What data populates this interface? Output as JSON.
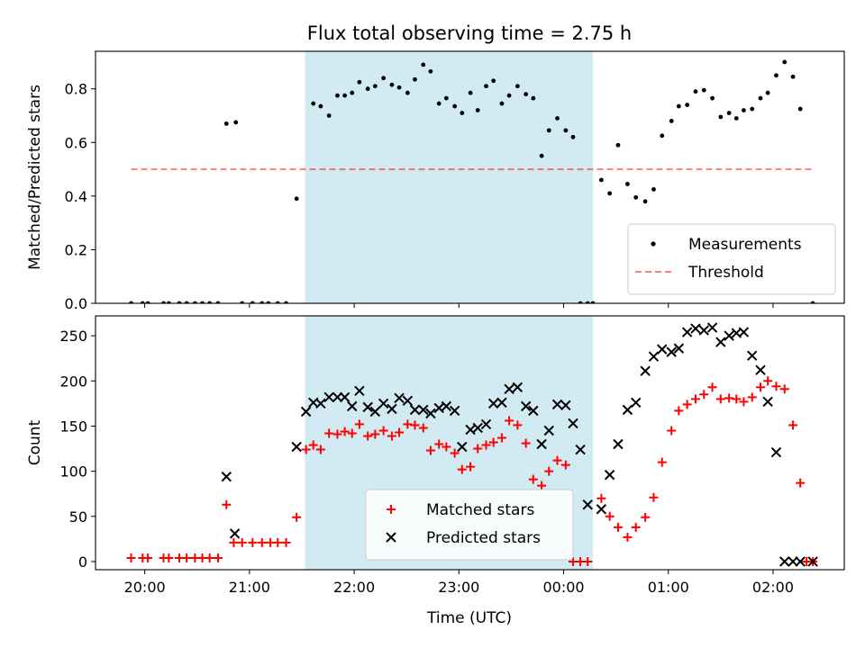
{
  "chart_data": {
    "title": "Flux total observing time = 2.75 h",
    "xlabel": "Time (UTC)",
    "x_unit": "hours since 20:00 UTC",
    "xlim": [
      -0.47,
      6.68
    ],
    "xticks": [
      {
        "value": 0,
        "label": "20:00"
      },
      {
        "value": 1,
        "label": "21:00"
      },
      {
        "value": 2,
        "label": "22:00"
      },
      {
        "value": 3,
        "label": "23:00"
      },
      {
        "value": 4,
        "label": "00:00"
      },
      {
        "value": 5,
        "label": "01:00"
      },
      {
        "value": 6,
        "label": "02:00"
      }
    ],
    "shaded_interval": {
      "x0": 1.53,
      "x1": 4.28,
      "color": "#add8e6"
    },
    "panels": [
      {
        "type": "scatter",
        "ylabel": "Matched/Predicted stars",
        "ylim": [
          0,
          0.94
        ],
        "yticks": [
          "0.0",
          "0.2",
          "0.4",
          "0.6",
          "0.8"
        ],
        "ytick_values": [
          0,
          0.2,
          0.4,
          0.6,
          0.8
        ],
        "legend_position": "bottom-right",
        "threshold": {
          "name": "Threshold",
          "value": 0.5,
          "x0": -0.13,
          "x1": 6.38,
          "color": "#ff0000",
          "opacity": 0.5
        },
        "series": [
          {
            "name": "Measurements",
            "color": "#000000",
            "x": [
              -0.13,
              -0.02,
              0.03,
              0.18,
              0.23,
              0.33,
              0.4,
              0.48,
              0.55,
              0.62,
              0.7,
              0.78,
              0.87,
              0.93,
              1.03,
              1.12,
              1.18,
              1.27,
              1.35,
              1.45,
              1.61,
              1.68,
              1.76,
              1.84,
              1.91,
              1.98,
              2.05,
              2.13,
              2.2,
              2.28,
              2.36,
              2.43,
              2.51,
              2.58,
              2.66,
              2.73,
              2.81,
              2.88,
              2.96,
              3.03,
              3.11,
              3.18,
              3.26,
              3.33,
              3.41,
              3.48,
              3.56,
              3.64,
              3.71,
              3.79,
              3.86,
              3.94,
              4.02,
              4.09,
              4.16,
              4.23,
              4.28,
              4.36,
              4.44,
              4.52,
              4.61,
              4.69,
              4.78,
              4.86,
              4.94,
              5.03,
              5.1,
              5.18,
              5.26,
              5.34,
              5.42,
              5.5,
              5.58,
              5.65,
              5.72,
              5.8,
              5.88,
              5.95,
              6.03,
              6.11,
              6.19,
              6.26,
              6.38
            ],
            "y": [
              0.0,
              0.0,
              0.0,
              0.0,
              0.0,
              0.0,
              0.0,
              0.0,
              0.0,
              0.0,
              0.0,
              0.67,
              0.675,
              0.0,
              0.0,
              0.0,
              0.0,
              0.0,
              0.0,
              0.39,
              0.745,
              0.735,
              0.7,
              0.775,
              0.775,
              0.785,
              0.825,
              0.8,
              0.81,
              0.84,
              0.815,
              0.805,
              0.785,
              0.835,
              0.89,
              0.865,
              0.745,
              0.765,
              0.735,
              0.71,
              0.785,
              0.72,
              0.81,
              0.83,
              0.745,
              0.775,
              0.81,
              0.78,
              0.765,
              0.55,
              0.645,
              0.69,
              0.645,
              0.62,
              0.0,
              0.0,
              0.0,
              0.46,
              0.41,
              0.59,
              0.445,
              0.395,
              0.38,
              0.425,
              0.625,
              0.68,
              0.735,
              0.74,
              0.79,
              0.795,
              0.765,
              0.695,
              0.71,
              0.69,
              0.72,
              0.725,
              0.765,
              0.785,
              0.85,
              0.9,
              0.845,
              0.725,
              0.0
            ]
          }
        ]
      },
      {
        "type": "scatter",
        "ylabel": "Count",
        "ylim": [
          -9,
          272
        ],
        "yticks": [
          "0",
          "50",
          "100",
          "150",
          "200",
          "250"
        ],
        "ytick_values": [
          0,
          50,
          100,
          150,
          200,
          250
        ],
        "legend_position": "bottom-center",
        "series": [
          {
            "name": "Matched stars",
            "marker": "plus",
            "color": "#ff0000",
            "x": [
              -0.13,
              -0.02,
              0.03,
              0.18,
              0.23,
              0.33,
              0.4,
              0.48,
              0.55,
              0.62,
              0.7,
              0.78,
              0.85,
              0.93,
              1.03,
              1.12,
              1.2,
              1.27,
              1.35,
              1.45,
              1.54,
              1.61,
              1.68,
              1.76,
              1.84,
              1.91,
              1.98,
              2.05,
              2.13,
              2.2,
              2.28,
              2.36,
              2.43,
              2.51,
              2.58,
              2.66,
              2.73,
              2.81,
              2.88,
              2.96,
              3.03,
              3.11,
              3.18,
              3.26,
              3.33,
              3.41,
              3.48,
              3.56,
              3.64,
              3.71,
              3.79,
              3.86,
              3.94,
              4.02,
              4.09,
              4.16,
              4.23,
              4.36,
              4.44,
              4.52,
              4.61,
              4.69,
              4.78,
              4.86,
              4.94,
              5.03,
              5.1,
              5.18,
              5.26,
              5.34,
              5.42,
              5.5,
              5.58,
              5.65,
              5.72,
              5.8,
              5.88,
              5.95,
              6.03,
              6.11,
              6.19,
              6.26,
              6.32,
              6.38
            ],
            "y": [
              4,
              4,
              4,
              4,
              4,
              4,
              4,
              4,
              4,
              4,
              4,
              63,
              21,
              21,
              21,
              21,
              21,
              21,
              21,
              49,
              124,
              129,
              124,
              142,
              141,
              144,
              142,
              152,
              139,
              141,
              145,
              139,
              143,
              152,
              151,
              148,
              123,
              130,
              127,
              120,
              102,
              105,
              125,
              129,
              132,
              137,
              156,
              151,
              131,
              91,
              84,
              100,
              112,
              107,
              0,
              0,
              0,
              70,
              50,
              38,
              27,
              38,
              49,
              71,
              110,
              145,
              167,
              174,
              180,
              185,
              193,
              180,
              181,
              180,
              177,
              182,
              193,
              200,
              194,
              191,
              151,
              87,
              0,
              0
            ]
          },
          {
            "name": "Predicted stars",
            "marker": "x",
            "color": "#000000",
            "x": [
              0.78,
              0.86,
              1.45,
              1.54,
              1.61,
              1.68,
              1.76,
              1.84,
              1.91,
              1.98,
              2.05,
              2.13,
              2.2,
              2.28,
              2.36,
              2.43,
              2.51,
              2.58,
              2.66,
              2.73,
              2.81,
              2.88,
              2.96,
              3.03,
              3.11,
              3.18,
              3.26,
              3.33,
              3.41,
              3.48,
              3.56,
              3.64,
              3.71,
              3.79,
              3.86,
              3.94,
              4.02,
              4.09,
              4.16,
              4.23,
              4.36,
              4.44,
              4.52,
              4.61,
              4.69,
              4.78,
              4.86,
              4.94,
              5.03,
              5.1,
              5.18,
              5.26,
              5.34,
              5.42,
              5.5,
              5.58,
              5.65,
              5.72,
              5.8,
              5.88,
              5.95,
              6.03,
              6.11,
              6.19,
              6.26,
              6.38
            ],
            "y": [
              94,
              31,
              127,
              166,
              176,
              175,
              182,
              182,
              182,
              172,
              189,
              171,
              166,
              175,
              169,
              181,
              178,
              168,
              168,
              164,
              170,
              172,
              167,
              127,
              146,
              148,
              152,
              175,
              176,
              191,
              193,
              172,
              167,
              130,
              145,
              174,
              173,
              153,
              124,
              63,
              58,
              96,
              130,
              168,
              176,
              211,
              227,
              235,
              232,
              236,
              254,
              258,
              256,
              259,
              243,
              250,
              253,
              254,
              228,
              212,
              177,
              121,
              0,
              0,
              0,
              0
            ]
          }
        ]
      }
    ]
  }
}
